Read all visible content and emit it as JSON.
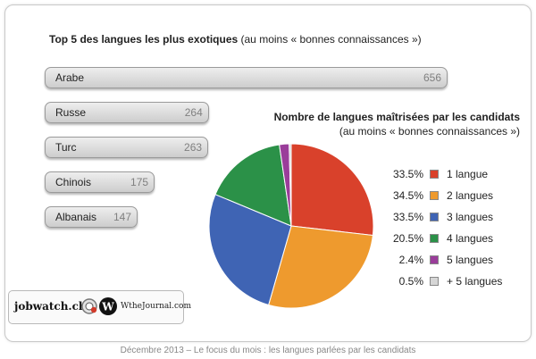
{
  "bar_chart": {
    "title_bold": "Top 5 des langues les plus exotiques",
    "title_note": "(au moins « bonnes connaissances »)"
  },
  "pie_chart": {
    "title": "Nombre de langues maîtrisées  par les candidats",
    "subtitle": "(au moins « bonnes connaissances »)"
  },
  "chart_data": [
    {
      "type": "bar",
      "orientation": "horizontal",
      "title": "Top 5 des langues les plus exotiques (au moins « bonnes connaissances »)",
      "categories": [
        "Arabe",
        "Russe",
        "Turc",
        "Chinois",
        "Albanais"
      ],
      "values": [
        656,
        264,
        263,
        175,
        147
      ],
      "values_display": [
        "656",
        "264",
        "263",
        "175",
        "147"
      ],
      "grid": false,
      "bar_color": "#d6d6d6"
    },
    {
      "type": "pie",
      "title": "Nombre de langues maîtrisées  par les candidats",
      "subtitle": "(au moins « bonnes connaissances »)",
      "categories": [
        "1 langue",
        "2 langues",
        "3 langues",
        "4 langues",
        "5 langues",
        "+ 5 langues"
      ],
      "values": [
        33.5,
        34.5,
        33.5,
        20.5,
        2.4,
        0.5
      ],
      "labels_display": [
        "33.5%",
        "34.5%",
        "33.5%",
        "20.5%",
        "2.4%",
        "0.5%"
      ],
      "colors": [
        "#d9412b",
        "#ee9a2e",
        "#3f64b4",
        "#2b9148",
        "#9a3d9a",
        "#d6d6d6"
      ],
      "legend_position": "right"
    }
  ],
  "logos": {
    "jobwatch": "jobwatch.ch",
    "wthe": "WtheJournal.com",
    "w_letter": "W"
  },
  "footer": "Décembre 2013 – Le focus du mois : les langues parlées par les candidats"
}
